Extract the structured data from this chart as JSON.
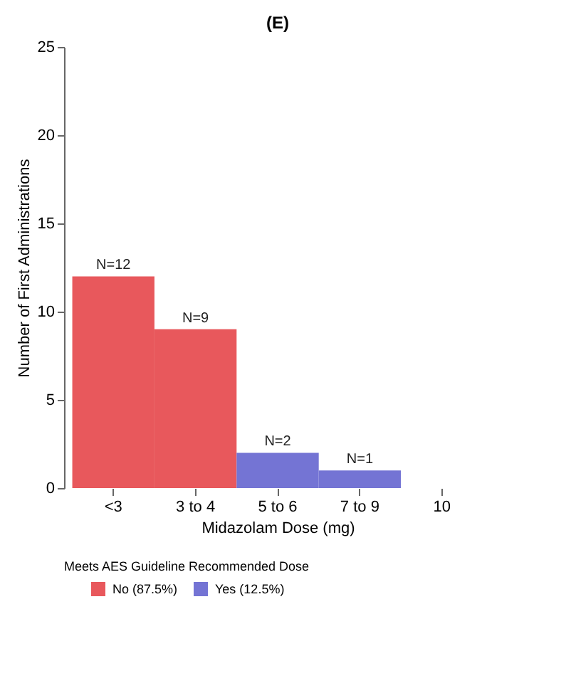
{
  "chart_data": {
    "type": "bar",
    "title": "(E)",
    "xlabel": "Midazolam Dose (mg)",
    "ylabel": "Number of First Administrations",
    "legend_title": "Meets AES Guideline Recommended Dose",
    "categories": [
      "<3",
      "3 to 4",
      "5 to 6",
      "7 to 9",
      "10"
    ],
    "series": [
      {
        "name": "No (87.5%)",
        "color": "#e8585c",
        "values": [
          12,
          9,
          null,
          null,
          null
        ],
        "value_labels": [
          "N=12",
          "N=9",
          null,
          null,
          null
        ]
      },
      {
        "name": "Yes (12.5%)",
        "color": "#7474d4",
        "values": [
          null,
          null,
          2,
          1,
          null
        ],
        "value_labels": [
          null,
          null,
          "N=2",
          "N=1",
          null
        ]
      }
    ],
    "ylim": [
      0,
      25
    ],
    "yticks": [
      0,
      5,
      10,
      15,
      20,
      25
    ],
    "grid": false,
    "legend": "bottom"
  }
}
